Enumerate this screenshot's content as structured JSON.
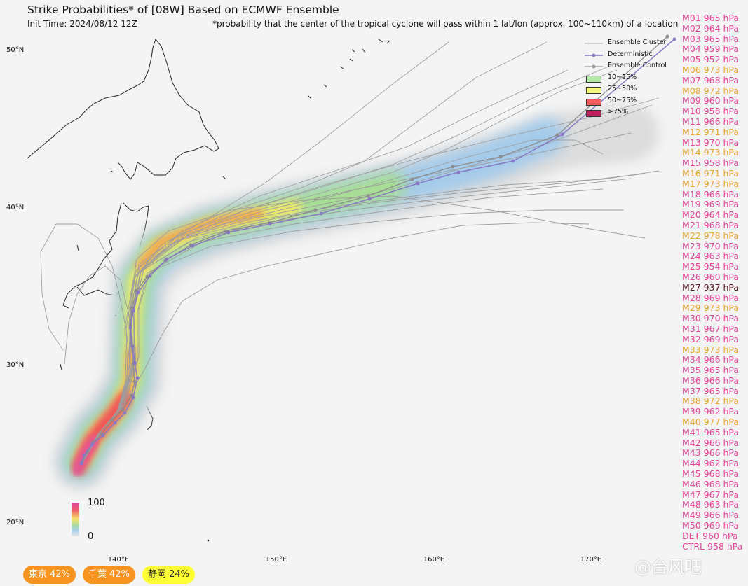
{
  "title": "Strike Probabilities* of [08W] Based on ECMWF Ensemble",
  "init_time": "Init Time: 2024/08/12 12Z",
  "footnote": "*probability that the center of the tropical cyclone will pass within 1 lat/lon (approx. 100~110km) of a location",
  "latitude_labels": [
    "50°N",
    "40°N",
    "30°N",
    "20°N"
  ],
  "longitude_labels": [
    "140°E",
    "150°E",
    "160°E",
    "170°E"
  ],
  "legend": {
    "ensemble_cluster": "Ensemble Cluster",
    "deterministic": "Deterministic",
    "ensemble_control": "Ensemble Control",
    "bands": [
      {
        "label": "10~25%",
        "color": "#b3eaa5"
      },
      {
        "label": "25~50%",
        "color": "#f5f57a"
      },
      {
        "label": "50~75%",
        "color": "#f25c5c"
      },
      {
        "label": ">75%",
        "color": "#b5225e"
      }
    ]
  },
  "colorbar": {
    "max": "100",
    "min": "0"
  },
  "colors": {
    "member_pink": "#e6429a",
    "member_orange": "#e8a52a",
    "member_dark": "#5a1220",
    "det_track": "#8878c4",
    "ctrl_track": "#999999"
  },
  "members": [
    {
      "label": "M01 965 hPa",
      "tone": "pink"
    },
    {
      "label": "M02 964 hPa",
      "tone": "pink"
    },
    {
      "label": "M03 965 hPa",
      "tone": "pink"
    },
    {
      "label": "M04 959 hPa",
      "tone": "pink"
    },
    {
      "label": "M05 952 hPa",
      "tone": "pink"
    },
    {
      "label": "M06 973 hPa",
      "tone": "orange"
    },
    {
      "label": "M07 968 hPa",
      "tone": "pink"
    },
    {
      "label": "M08 972 hPa",
      "tone": "orange"
    },
    {
      "label": "M09 960 hPa",
      "tone": "pink"
    },
    {
      "label": "M10 958 hPa",
      "tone": "pink"
    },
    {
      "label": "M11 966 hPa",
      "tone": "pink"
    },
    {
      "label": "M12 971 hPa",
      "tone": "orange"
    },
    {
      "label": "M13 970 hPa",
      "tone": "pink"
    },
    {
      "label": "M14 973 hPa",
      "tone": "orange"
    },
    {
      "label": "M15 958 hPa",
      "tone": "pink"
    },
    {
      "label": "M16 971 hPa",
      "tone": "orange"
    },
    {
      "label": "M17 973 hPa",
      "tone": "orange"
    },
    {
      "label": "M18 966 hPa",
      "tone": "pink"
    },
    {
      "label": "M19 969 hPa",
      "tone": "pink"
    },
    {
      "label": "M20 964 hPa",
      "tone": "pink"
    },
    {
      "label": "M21 968 hPa",
      "tone": "pink"
    },
    {
      "label": "M22 978 hPa",
      "tone": "orange"
    },
    {
      "label": "M23 970 hPa",
      "tone": "pink"
    },
    {
      "label": "M24 963 hPa",
      "tone": "pink"
    },
    {
      "label": "M25 954 hPa",
      "tone": "pink"
    },
    {
      "label": "M26 960 hPa",
      "tone": "pink"
    },
    {
      "label": "M27 937 hPa",
      "tone": "dark"
    },
    {
      "label": "M28 969 hPa",
      "tone": "pink"
    },
    {
      "label": "M29 973 hPa",
      "tone": "orange"
    },
    {
      "label": "M30 970 hPa",
      "tone": "pink"
    },
    {
      "label": "M31 967 hPa",
      "tone": "pink"
    },
    {
      "label": "M32 969 hPa",
      "tone": "pink"
    },
    {
      "label": "M33 973 hPa",
      "tone": "orange"
    },
    {
      "label": "M34 966 hPa",
      "tone": "pink"
    },
    {
      "label": "M35 965 hPa",
      "tone": "pink"
    },
    {
      "label": "M36 966 hPa",
      "tone": "pink"
    },
    {
      "label": "M37 965 hPa",
      "tone": "pink"
    },
    {
      "label": "M38 972 hPa",
      "tone": "orange"
    },
    {
      "label": "M39 962 hPa",
      "tone": "pink"
    },
    {
      "label": "M40 977 hPa",
      "tone": "orange"
    },
    {
      "label": "M41 965 hPa",
      "tone": "pink"
    },
    {
      "label": "M42 966 hPa",
      "tone": "pink"
    },
    {
      "label": "M43 966 hPa",
      "tone": "pink"
    },
    {
      "label": "M44 962 hPa",
      "tone": "pink"
    },
    {
      "label": "M45 968 hPa",
      "tone": "pink"
    },
    {
      "label": "M46 968 hPa",
      "tone": "pink"
    },
    {
      "label": "M47 967 hPa",
      "tone": "pink"
    },
    {
      "label": "M48 963 hPa",
      "tone": "pink"
    },
    {
      "label": "M49 966 hPa",
      "tone": "pink"
    },
    {
      "label": "M50 969 hPa",
      "tone": "pink"
    },
    {
      "label": "DET 960 hPa",
      "tone": "pink"
    },
    {
      "label": "CTRL 958 hPa",
      "tone": "pink"
    }
  ],
  "cities": [
    {
      "label": "東京 42%",
      "style": "orange"
    },
    {
      "label": "千葉 42%",
      "style": "orange"
    },
    {
      "label": "静岡 24%",
      "style": "yellow"
    }
  ],
  "watermark": "@台风吧"
}
